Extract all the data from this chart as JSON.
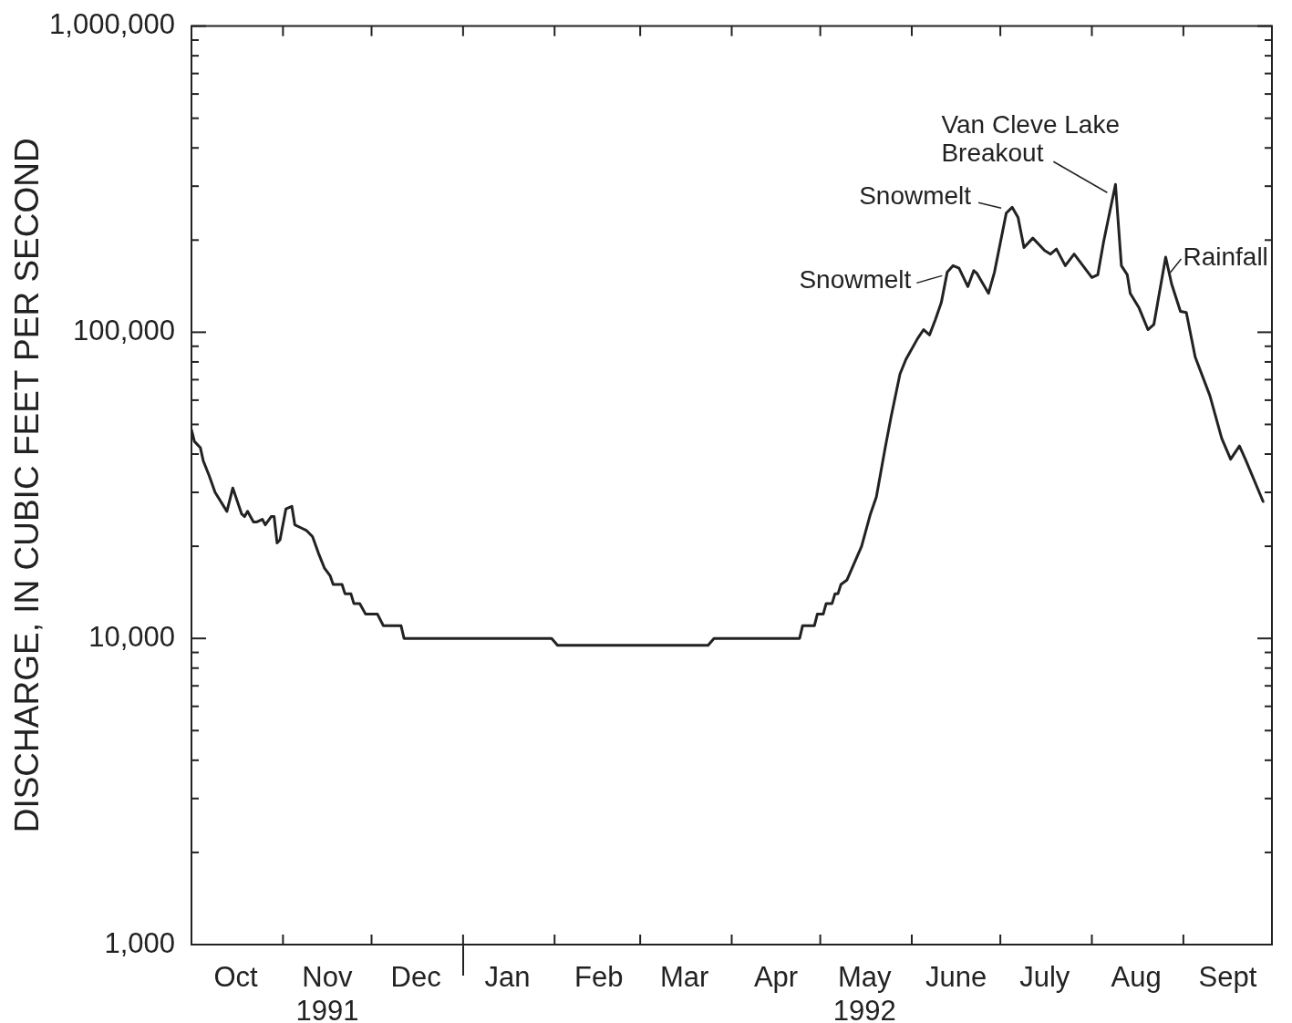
{
  "chart_data": {
    "type": "line",
    "ylabel": "DISCHARGE, IN CUBIC FEET PER SECOND",
    "log": true,
    "xlim": [
      "1991-10-01",
      "1992-10-01"
    ],
    "ylim": [
      1000,
      1000000
    ],
    "xticks": [
      {
        "value": "1991-10-16",
        "label": "Oct"
      },
      {
        "value": "1991-11-01",
        "label": null
      },
      {
        "value": "1991-11-16",
        "label": "Nov\n1991"
      },
      {
        "value": "1991-12-01",
        "label": null
      },
      {
        "value": "1991-12-16",
        "label": "Dec"
      },
      {
        "value": "1992-01-01",
        "label": null
      },
      {
        "value": "1992-01-16",
        "label": "Jan"
      },
      {
        "value": "1992-02-01",
        "label": null
      },
      {
        "value": "1992-02-16",
        "label": "Feb"
      },
      {
        "value": "1992-03-01",
        "label": null
      },
      {
        "value": "1992-03-16",
        "label": "Mar"
      },
      {
        "value": "1992-04-01",
        "label": null
      },
      {
        "value": "1992-04-16",
        "label": "Apr"
      },
      {
        "value": "1992-05-01",
        "label": null
      },
      {
        "value": "1992-05-16",
        "label": "May\n1992"
      },
      {
        "value": "1992-06-01",
        "label": null
      },
      {
        "value": "1992-06-16",
        "label": "June"
      },
      {
        "value": "1992-07-01",
        "label": null
      },
      {
        "value": "1992-07-16",
        "label": "July"
      },
      {
        "value": "1992-08-01",
        "label": null
      },
      {
        "value": "1992-08-16",
        "label": "Aug"
      },
      {
        "value": "1992-09-01",
        "label": null
      },
      {
        "value": "1992-09-16",
        "label": "Sept"
      }
    ],
    "yticks": [
      {
        "value": 1000,
        "label": "1,000"
      },
      {
        "value": 2000,
        "label": null
      },
      {
        "value": 3000,
        "label": null
      },
      {
        "value": 4000,
        "label": null
      },
      {
        "value": 5000,
        "label": null
      },
      {
        "value": 6000,
        "label": null
      },
      {
        "value": 7000,
        "label": null
      },
      {
        "value": 8000,
        "label": null
      },
      {
        "value": 9000,
        "label": null
      },
      {
        "value": 10000,
        "label": "10,000"
      },
      {
        "value": 20000,
        "label": null
      },
      {
        "value": 30000,
        "label": null
      },
      {
        "value": 40000,
        "label": null
      },
      {
        "value": 50000,
        "label": null
      },
      {
        "value": 60000,
        "label": null
      },
      {
        "value": 70000,
        "label": null
      },
      {
        "value": 80000,
        "label": null
      },
      {
        "value": 90000,
        "label": null
      },
      {
        "value": 100000,
        "label": "100,000"
      },
      {
        "value": 200000,
        "label": null
      },
      {
        "value": 300000,
        "label": null
      },
      {
        "value": 400000,
        "label": null
      },
      {
        "value": 500000,
        "label": null
      },
      {
        "value": 600000,
        "label": null
      },
      {
        "value": 700000,
        "label": null
      },
      {
        "value": 800000,
        "label": null
      },
      {
        "value": 900000,
        "label": null
      },
      {
        "value": 1000000,
        "label": "1,000,000"
      }
    ],
    "series": [
      {
        "color": "#222222",
        "x": [
          "1991-10-01",
          "1991-10-02",
          "1991-10-04",
          "1991-10-05",
          "1991-10-07",
          "1991-10-09",
          "1991-10-13",
          "1991-10-15",
          "1991-10-18",
          "1991-10-19",
          "1991-10-20",
          "1991-10-22",
          "1991-10-23",
          "1991-10-25",
          "1991-10-26",
          "1991-10-28",
          "1991-10-29",
          "1991-10-30",
          "1991-10-31",
          "1991-11-02",
          "1991-11-04",
          "1991-11-05",
          "1991-11-07",
          "1991-11-09",
          "1991-11-11",
          "1991-11-13",
          "1991-11-15",
          "1991-11-17",
          "1991-11-18",
          "1991-11-21",
          "1991-11-22",
          "1991-11-24",
          "1991-11-25",
          "1991-11-27",
          "1991-11-29",
          "1991-12-03",
          "1991-12-05",
          "1991-12-11",
          "1991-12-12",
          "1992-01-31",
          "1992-02-02",
          "1992-03-24",
          "1992-03-26",
          "1992-04-24",
          "1992-04-25",
          "1992-04-29",
          "1992-04-30",
          "1992-05-02",
          "1992-05-03",
          "1992-05-05",
          "1992-05-06",
          "1992-05-07",
          "1992-05-08",
          "1992-05-10",
          "1992-05-15",
          "1992-05-18",
          "1992-05-20",
          "1992-05-23",
          "1992-05-25",
          "1992-05-28",
          "1992-05-30",
          "1992-06-03",
          "1992-06-05",
          "1992-06-07",
          "1992-06-09",
          "1992-06-11",
          "1992-06-13",
          "1992-06-15",
          "1992-06-17",
          "1992-06-20",
          "1992-06-22",
          "1992-06-23",
          "1992-06-27",
          "1992-06-29",
          "1992-07-03",
          "1992-07-05",
          "1992-07-07",
          "1992-07-09",
          "1992-07-12",
          "1992-07-16",
          "1992-07-18",
          "1992-07-20",
          "1992-07-23",
          "1992-07-26",
          "1992-08-01",
          "1992-08-03",
          "1992-08-05",
          "1992-08-09",
          "1992-08-11",
          "1992-08-13",
          "1992-08-14",
          "1992-08-17",
          "1992-08-20",
          "1992-08-22",
          "1992-08-26",
          "1992-08-28",
          "1992-08-31",
          "1992-09-02",
          "1992-09-05",
          "1992-09-10",
          "1992-09-14",
          "1992-09-17",
          "1992-09-20",
          "1992-09-22",
          "1992-09-28"
        ],
        "values": [
          48000,
          44000,
          42000,
          38000,
          34000,
          30000,
          26000,
          31000,
          25500,
          25000,
          26000,
          24000,
          24000,
          24500,
          23500,
          25000,
          25000,
          20500,
          21000,
          26500,
          27000,
          23500,
          23000,
          22500,
          21500,
          19000,
          17000,
          16000,
          15000,
          15000,
          14000,
          14000,
          13000,
          13000,
          12000,
          12000,
          11000,
          11000,
          10000,
          10000,
          9500,
          9500,
          10000,
          10000,
          11000,
          11000,
          12000,
          12000,
          13000,
          13000,
          14000,
          14000,
          15000,
          15500,
          20000,
          25500,
          29000,
          42000,
          53000,
          73000,
          81500,
          95500,
          102000,
          98000,
          110000,
          125000,
          157000,
          165000,
          162000,
          141000,
          159000,
          156000,
          134000,
          157000,
          245000,
          256000,
          237000,
          189000,
          203000,
          185000,
          180000,
          187000,
          165000,
          180000,
          151000,
          154000,
          198000,
          304000,
          165000,
          154000,
          134000,
          120000,
          102000,
          106000,
          176000,
          144000,
          117000,
          116000,
          83000,
          62000,
          45000,
          38500,
          42500,
          38500,
          28000
        ]
      }
    ],
    "annotations": [
      {
        "text": "Snowmelt",
        "x": "1992-06-15",
        "y": 165000
      },
      {
        "text": "Snowmelt",
        "x": "1992-07-05",
        "y": 256000
      },
      {
        "text": "Van Cleve Lake\nBreakout",
        "x": "1992-08-09",
        "y": 304000
      },
      {
        "text": "Rainfall",
        "x": "1992-08-26",
        "y": 176000
      }
    ]
  }
}
